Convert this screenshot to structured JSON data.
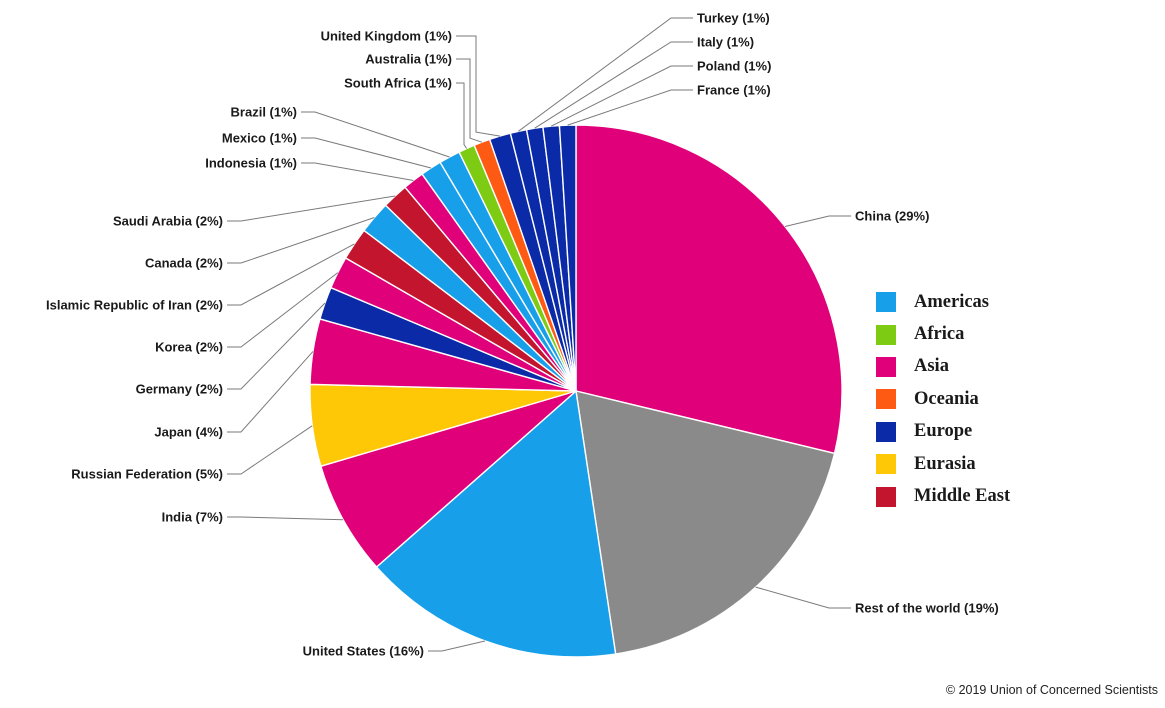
{
  "chart_data": {
    "type": "pie",
    "slices": [
      {
        "label": "China (29%)",
        "value": 29,
        "region": "Asia",
        "label_pos": "right"
      },
      {
        "label": "Rest of the world (19%)",
        "value": 19,
        "region": "Other",
        "label_pos": "right"
      },
      {
        "label": "United States (16%)",
        "value": 16,
        "region": "Americas",
        "label_pos": "left"
      },
      {
        "label": "India (7%)",
        "value": 7,
        "region": "Asia",
        "label_pos": "left"
      },
      {
        "label": "Russian Federation (5%)",
        "value": 5,
        "region": "Eurasia",
        "label_pos": "left"
      },
      {
        "label": "Japan (4%)",
        "value": 4,
        "region": "Asia",
        "label_pos": "left"
      },
      {
        "label": "Germany (2%)",
        "value": 2,
        "region": "Europe",
        "label_pos": "left"
      },
      {
        "label": "Korea (2%)",
        "value": 2,
        "region": "Asia",
        "label_pos": "left"
      },
      {
        "label": "Islamic Republic of Iran (2%)",
        "value": 2,
        "region": "Middle East",
        "label_pos": "left"
      },
      {
        "label": "Canada (2%)",
        "value": 2,
        "region": "Americas",
        "label_pos": "left"
      },
      {
        "label": "Saudi Arabia (2%)",
        "value": 1.6,
        "region": "Middle East",
        "label_pos": "left"
      },
      {
        "label": "Indonesia (1%)",
        "value": 1.3,
        "region": "Asia",
        "label_pos": "left"
      },
      {
        "label": "Mexico (1%)",
        "value": 1.3,
        "region": "Americas",
        "label_pos": "left"
      },
      {
        "label": "Brazil (1%)",
        "value": 1.3,
        "region": "Americas",
        "label_pos": "left"
      },
      {
        "label": "South Africa (1%)",
        "value": 1.0,
        "region": "Africa",
        "label_pos": "left"
      },
      {
        "label": "Australia (1%)",
        "value": 1.0,
        "region": "Oceania",
        "label_pos": "left"
      },
      {
        "label": "United Kingdom (1%)",
        "value": 1.3,
        "region": "Europe",
        "label_pos": "left"
      },
      {
        "label": "Turkey (1%)",
        "value": 1.0,
        "region": "Europe",
        "label_pos": "right"
      },
      {
        "label": "Italy (1%)",
        "value": 1.0,
        "region": "Europe",
        "label_pos": "right"
      },
      {
        "label": "Poland (1%)",
        "value": 1.0,
        "region": "Europe",
        "label_pos": "right"
      },
      {
        "label": "France (1%)",
        "value": 1.0,
        "region": "Europe",
        "label_pos": "right"
      }
    ],
    "legend": [
      {
        "name": "Americas",
        "color": "#179fe9"
      },
      {
        "name": "Africa",
        "color": "#7ecb13"
      },
      {
        "name": "Asia",
        "color": "#e0007a"
      },
      {
        "name": "Oceania",
        "color": "#ff5a14"
      },
      {
        "name": "Europe",
        "color": "#0b2aa8"
      },
      {
        "name": "Eurasia",
        "color": "#fec806"
      },
      {
        "name": "Middle East",
        "color": "#c3162e"
      }
    ],
    "legend_position": "right",
    "other_color": "#8a8a8a"
  },
  "credit": "© 2019 Union of Concerned Scientists"
}
